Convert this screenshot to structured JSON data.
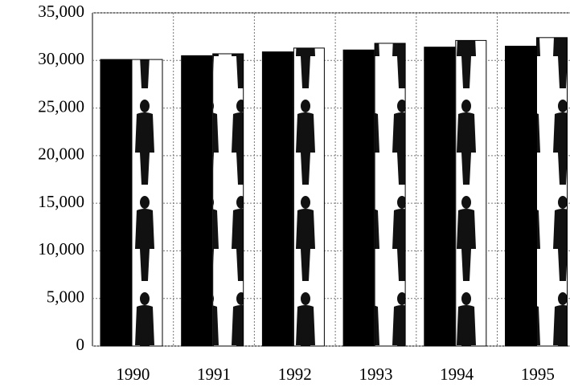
{
  "chart_data": {
    "type": "bar",
    "categories": [
      "1990",
      "1991",
      "1992",
      "1993",
      "1994",
      "1995"
    ],
    "series": [
      {
        "color": "#000000",
        "values": [
          30100,
          30500,
          30900,
          31100,
          31400,
          31500
        ]
      },
      {
        "color": "#ffffff",
        "values": [
          30100,
          30700,
          31300,
          31800,
          32100,
          32400
        ]
      }
    ],
    "ylim": [
      0,
      35000
    ],
    "yticks": [
      0,
      {
        "value": 5000,
        "label": "5,000"
      },
      {
        "value": 10000,
        "label": "10,000"
      },
      {
        "value": 15000,
        "label": "15,000"
      },
      {
        "value": 20000,
        "label": "20,000"
      },
      {
        "value": 25000,
        "label": "25,000"
      },
      {
        "value": 30000,
        "label": "30,000"
      },
      {
        "value": 35000,
        "label": "35,000"
      }
    ],
    "grid": true
  }
}
